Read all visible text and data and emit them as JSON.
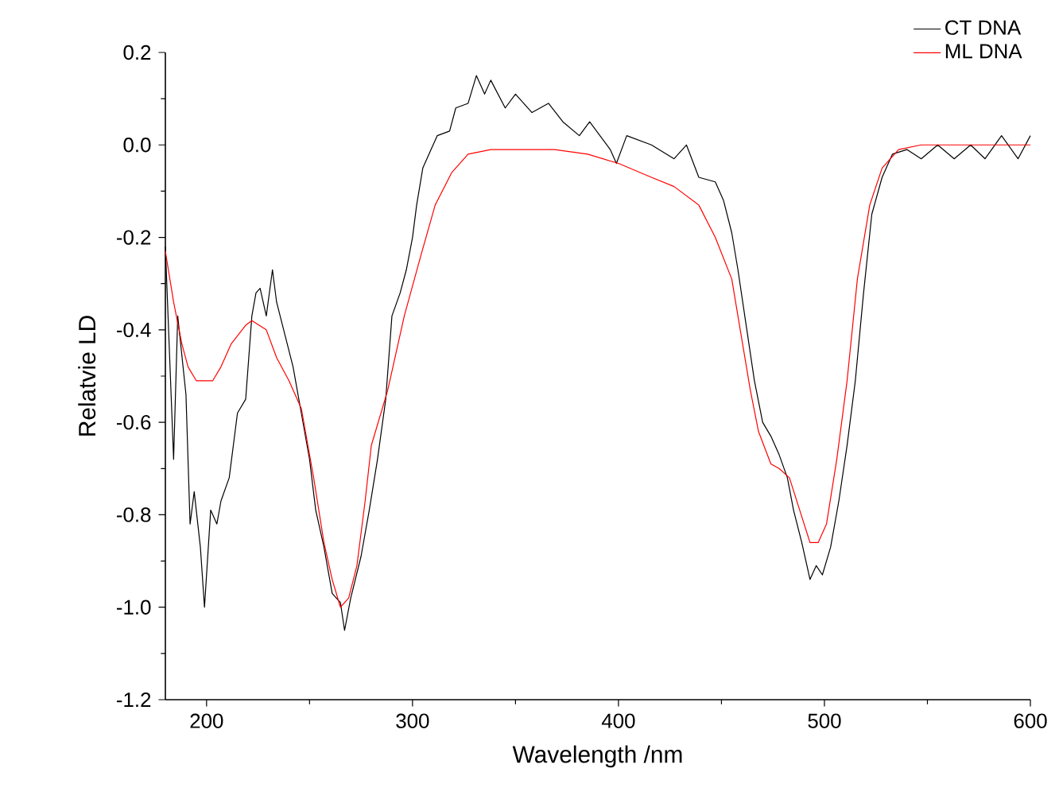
{
  "chart_data": {
    "type": "line",
    "xlabel": "Wavelength /nm",
    "ylabel": "Relatvie LD",
    "xlim": [
      180,
      600
    ],
    "ylim": [
      -1.2,
      0.2
    ],
    "xticks": [
      200,
      300,
      400,
      500,
      600
    ],
    "yticks": [
      -1.2,
      {
        "value": -1.0,
        "label": "-1.0"
      },
      -0.8,
      -0.6,
      -0.4,
      -0.2,
      {
        "value": 0.0,
        "label": "0.0"
      },
      0.2
    ],
    "legend": "top right",
    "grid": false,
    "series": [
      {
        "name": "CT DNA",
        "color": "#000000",
        "x": [
          180,
          184,
          186,
          190,
          192,
          194,
          197,
          199,
          202,
          205,
          207,
          211,
          215,
          219,
          222,
          224,
          226,
          229,
          232,
          234,
          238,
          242,
          246,
          250,
          253,
          257,
          261,
          265,
          267,
          270,
          275,
          279,
          283,
          287,
          290,
          294,
          297,
          300,
          302,
          305,
          309,
          312,
          318,
          321,
          327,
          331,
          335,
          338,
          345,
          350,
          358,
          366,
          373,
          381,
          386,
          396,
          399,
          404,
          416,
          427,
          433,
          439,
          447,
          451,
          455,
          458,
          462,
          466,
          470,
          474,
          478,
          482,
          485,
          489,
          493,
          496,
          499,
          503,
          507,
          511,
          515,
          519,
          523,
          528,
          533,
          540,
          547,
          555,
          563,
          571,
          578,
          586,
          594,
          600
        ],
        "values": [
          -0.22,
          -0.68,
          -0.37,
          -0.54,
          -0.82,
          -0.75,
          -0.87,
          -1.0,
          -0.79,
          -0.82,
          -0.77,
          -0.72,
          -0.58,
          -0.55,
          -0.37,
          -0.32,
          -0.31,
          -0.37,
          -0.27,
          -0.34,
          -0.41,
          -0.48,
          -0.58,
          -0.68,
          -0.79,
          -0.87,
          -0.97,
          -0.99,
          -1.05,
          -0.98,
          -0.89,
          -0.79,
          -0.68,
          -0.55,
          -0.37,
          -0.32,
          -0.27,
          -0.2,
          -0.13,
          -0.05,
          -0.01,
          0.02,
          0.03,
          0.08,
          0.09,
          0.15,
          0.11,
          0.14,
          0.08,
          0.11,
          0.07,
          0.09,
          0.05,
          0.02,
          0.05,
          -0.01,
          -0.04,
          0.02,
          0.0,
          -0.03,
          0.0,
          -0.07,
          -0.08,
          -0.12,
          -0.19,
          -0.27,
          -0.39,
          -0.51,
          -0.6,
          -0.63,
          -0.67,
          -0.72,
          -0.79,
          -0.86,
          -0.94,
          -0.91,
          -0.93,
          -0.87,
          -0.77,
          -0.65,
          -0.51,
          -0.32,
          -0.15,
          -0.07,
          -0.02,
          -0.01,
          -0.03,
          0.0,
          -0.03,
          0.0,
          -0.03,
          0.02,
          -0.03,
          0.02
        ]
      },
      {
        "name": "ML DNA",
        "color": "#ff0000",
        "x": [
          180,
          184,
          188,
          191,
          195,
          203,
          207,
          212,
          219,
          222,
          229,
          234,
          240,
          246,
          252,
          257,
          261,
          265,
          269,
          273,
          277,
          280,
          288,
          296,
          304,
          311,
          319,
          327,
          338,
          354,
          369,
          385,
          400,
          416,
          427,
          439,
          447,
          455,
          458,
          464,
          468,
          474,
          478,
          483,
          488,
          493,
          497,
          501,
          506,
          511,
          516,
          522,
          528,
          536,
          547,
          563,
          578,
          600
        ],
        "values": [
          -0.23,
          -0.34,
          -0.43,
          -0.48,
          -0.51,
          -0.51,
          -0.48,
          -0.43,
          -0.39,
          -0.38,
          -0.4,
          -0.46,
          -0.51,
          -0.57,
          -0.72,
          -0.86,
          -0.94,
          -1.0,
          -0.98,
          -0.91,
          -0.77,
          -0.65,
          -0.53,
          -0.37,
          -0.24,
          -0.13,
          -0.06,
          -0.02,
          -0.01,
          -0.01,
          -0.01,
          -0.02,
          -0.04,
          -0.07,
          -0.09,
          -0.13,
          -0.2,
          -0.29,
          -0.37,
          -0.53,
          -0.62,
          -0.69,
          -0.7,
          -0.72,
          -0.79,
          -0.86,
          -0.86,
          -0.82,
          -0.68,
          -0.51,
          -0.29,
          -0.13,
          -0.05,
          -0.01,
          0.0,
          0.0,
          0.0,
          0.0
        ]
      }
    ]
  }
}
